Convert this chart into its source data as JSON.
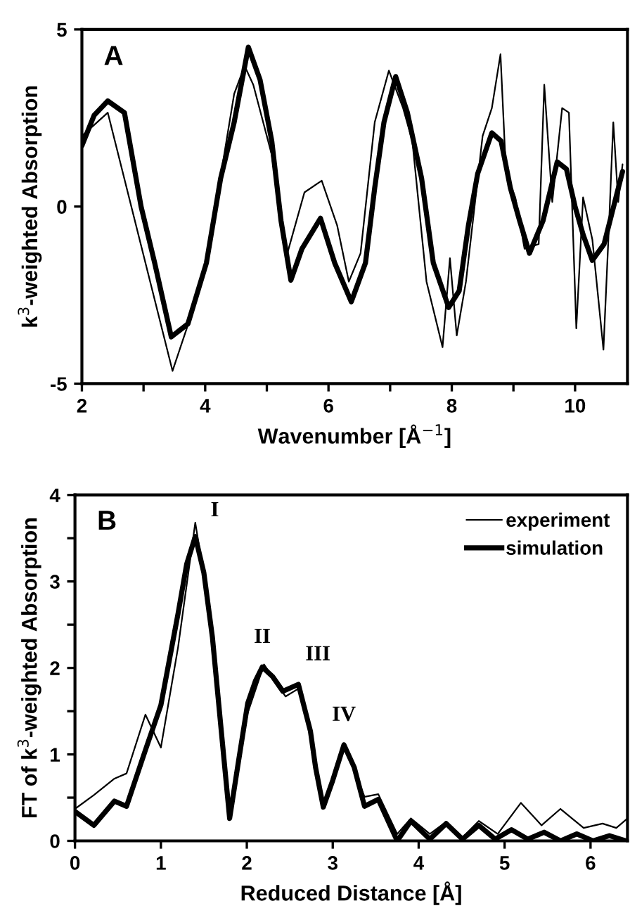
{
  "chart_data": [
    {
      "type": "line",
      "xlabel": "Wavenumber [Å$^{−1}$]",
      "ylabel": "k$^{3}$-weighted Absorption",
      "annotations": [
        "A"
      ],
      "xlim": [
        2,
        10.85
      ],
      "ylim": [
        -5,
        5
      ],
      "xticks": [
        2,
        {
          "value": 3,
          "label": null
        },
        4,
        {
          "value": 5,
          "label": null
        },
        6,
        {
          "value": 7,
          "label": null
        },
        8,
        {
          "value": 9,
          "label": null
        },
        10
      ],
      "yticks": [
        -5,
        0,
        5
      ],
      "grid": false,
      "legend": false,
      "series": [
        {
          "color": "#000000",
          "x": [
            2,
            2.42,
            3.47,
            3.79,
            4.02,
            4.47,
            4.64,
            4.78,
            5.08,
            5.31,
            5.61,
            5.89,
            6.14,
            6.33,
            6.52,
            6.75,
            6.98,
            7.21,
            7.36,
            7.59,
            7.85,
            7.97,
            8.08,
            8.23,
            8.5,
            8.65,
            8.79,
            8.88,
            9.03,
            9.18,
            9.41,
            9.5,
            9.63,
            9.79,
            9.9,
            10.02,
            10.13,
            10.28,
            10.46,
            10.55,
            10.62,
            10.7,
            10.77
          ],
          "values": [
            1.99,
            2.65,
            -4.64,
            -2.98,
            -1.59,
            3.18,
            3.97,
            3.44,
            1.46,
            -1.46,
            0.4,
            0.73,
            -0.53,
            -2.12,
            -1.32,
            2.38,
            3.84,
            2.78,
            1.85,
            -2.12,
            -3.97,
            -1.46,
            -3.64,
            -2.12,
            1.99,
            2.78,
            4.3,
            0.93,
            0.26,
            -1.19,
            -1.06,
            3.44,
            0.13,
            2.78,
            2.65,
            -3.44,
            0.26,
            -0.93,
            -4.04,
            -0.53,
            2.38,
            0.13,
            1.19
          ]
        },
        {
          "color": "#000000",
          "x": [
            2,
            2.2,
            2.42,
            2.69,
            2.96,
            3.18,
            3.45,
            3.72,
            4.02,
            4.25,
            4.47,
            4.7,
            4.89,
            5.08,
            5.23,
            5.39,
            5.57,
            5.87,
            6.1,
            6.37,
            6.6,
            6.75,
            6.9,
            7.09,
            7.28,
            7.51,
            7.7,
            7.95,
            8.12,
            8.27,
            8.42,
            8.65,
            8.8,
            8.95,
            9.1,
            9.26,
            9.48,
            9.71,
            9.86,
            10.0,
            10.13,
            10.28,
            10.47,
            10.77
          ],
          "values": [
            1.72,
            2.58,
            2.98,
            2.65,
            0,
            -1.59,
            -3.68,
            -3.31,
            -1.59,
            0.79,
            2.38,
            4.5,
            3.58,
            1.85,
            -0.4,
            -2.08,
            -1.19,
            -0.33,
            -1.59,
            -2.69,
            -1.59,
            0.53,
            2.38,
            3.67,
            2.65,
            0.8,
            -1.59,
            -2.85,
            -2.38,
            -0.53,
            0.93,
            2.08,
            1.85,
            0.53,
            -0.4,
            -1.32,
            -0.4,
            1.26,
            1.06,
            0,
            -0.79,
            -1.52,
            -1.06,
            0.99
          ]
        }
      ]
    },
    {
      "type": "line",
      "xlabel": "Reduced Distance [Å]",
      "ylabel": "FT of k$^{3}$-weighted Absorption",
      "annotations": [
        "B",
        {
          "text": "I",
          "x": 1.4,
          "y": 3.52
        },
        {
          "text": "II",
          "x": 2.18,
          "y": 2.01
        },
        {
          "text": "III",
          "x": 2.6,
          "y": 1.81
        },
        {
          "text": "IV",
          "x": 3.13,
          "y": 1.11
        }
      ],
      "xlim": [
        0,
        6.43
      ],
      "ylim": [
        0,
        4
      ],
      "xticks": [
        0,
        1,
        2,
        3,
        4,
        5,
        6
      ],
      "yticks": [
        0,
        {
          "value": 0.5,
          "label": null
        },
        1,
        {
          "value": 1.5,
          "label": null
        },
        2,
        {
          "value": 2.5,
          "label": null
        },
        3,
        {
          "value": 3.5,
          "label": null
        },
        4
      ],
      "grid": false,
      "legend": "top right",
      "series": [
        {
          "name": "experiment",
          "color": "#000000",
          "x": [
            0,
            0.22,
            0.46,
            0.6,
            0.82,
            1.0,
            1.2,
            1.4,
            1.6,
            1.8,
            2.01,
            2.2,
            2.45,
            2.6,
            2.74,
            2.89,
            3.13,
            3.37,
            3.53,
            3.75,
            3.91,
            4.13,
            4.32,
            4.51,
            4.7,
            4.92,
            5.19,
            5.43,
            5.65,
            5.92,
            6.14,
            6.3,
            6.43
          ],
          "values": [
            0.37,
            0.53,
            0.72,
            0.78,
            1.46,
            1.08,
            2.24,
            3.68,
            2.46,
            0.29,
            1.48,
            2.04,
            1.67,
            1.76,
            1.27,
            0.4,
            1.13,
            0.51,
            0.54,
            0.08,
            0.26,
            0.08,
            0.22,
            0.04,
            0.23,
            0.08,
            0.44,
            0.18,
            0.37,
            0.15,
            0.2,
            0.15,
            0.26
          ]
        },
        {
          "name": "simulation",
          "color": "#000000",
          "x": [
            0,
            0.22,
            0.46,
            0.6,
            0.82,
            1.0,
            1.2,
            1.3,
            1.4,
            1.5,
            1.6,
            1.7,
            1.8,
            1.9,
            2.01,
            2.1,
            2.18,
            2.3,
            2.42,
            2.6,
            2.74,
            2.8,
            2.89,
            3.0,
            3.13,
            3.25,
            3.37,
            3.53,
            3.75,
            3.91,
            4.13,
            4.32,
            4.51,
            4.7,
            4.89,
            5.08,
            5.27,
            5.46,
            5.65,
            5.84,
            6.03,
            6.22,
            6.41
          ],
          "values": [
            0.34,
            0.18,
            0.46,
            0.4,
            1.05,
            1.57,
            2.63,
            3.2,
            3.52,
            3.1,
            2.35,
            1.3,
            0.26,
            0.9,
            1.59,
            1.85,
            2.01,
            1.9,
            1.73,
            1.81,
            1.27,
            0.85,
            0.39,
            0.7,
            1.11,
            0.85,
            0.4,
            0.48,
            0,
            0.23,
            0.02,
            0.2,
            0.02,
            0.18,
            0.02,
            0.13,
            0.02,
            0.1,
            0,
            0.08,
            0,
            0.06,
            0
          ]
        }
      ]
    }
  ]
}
